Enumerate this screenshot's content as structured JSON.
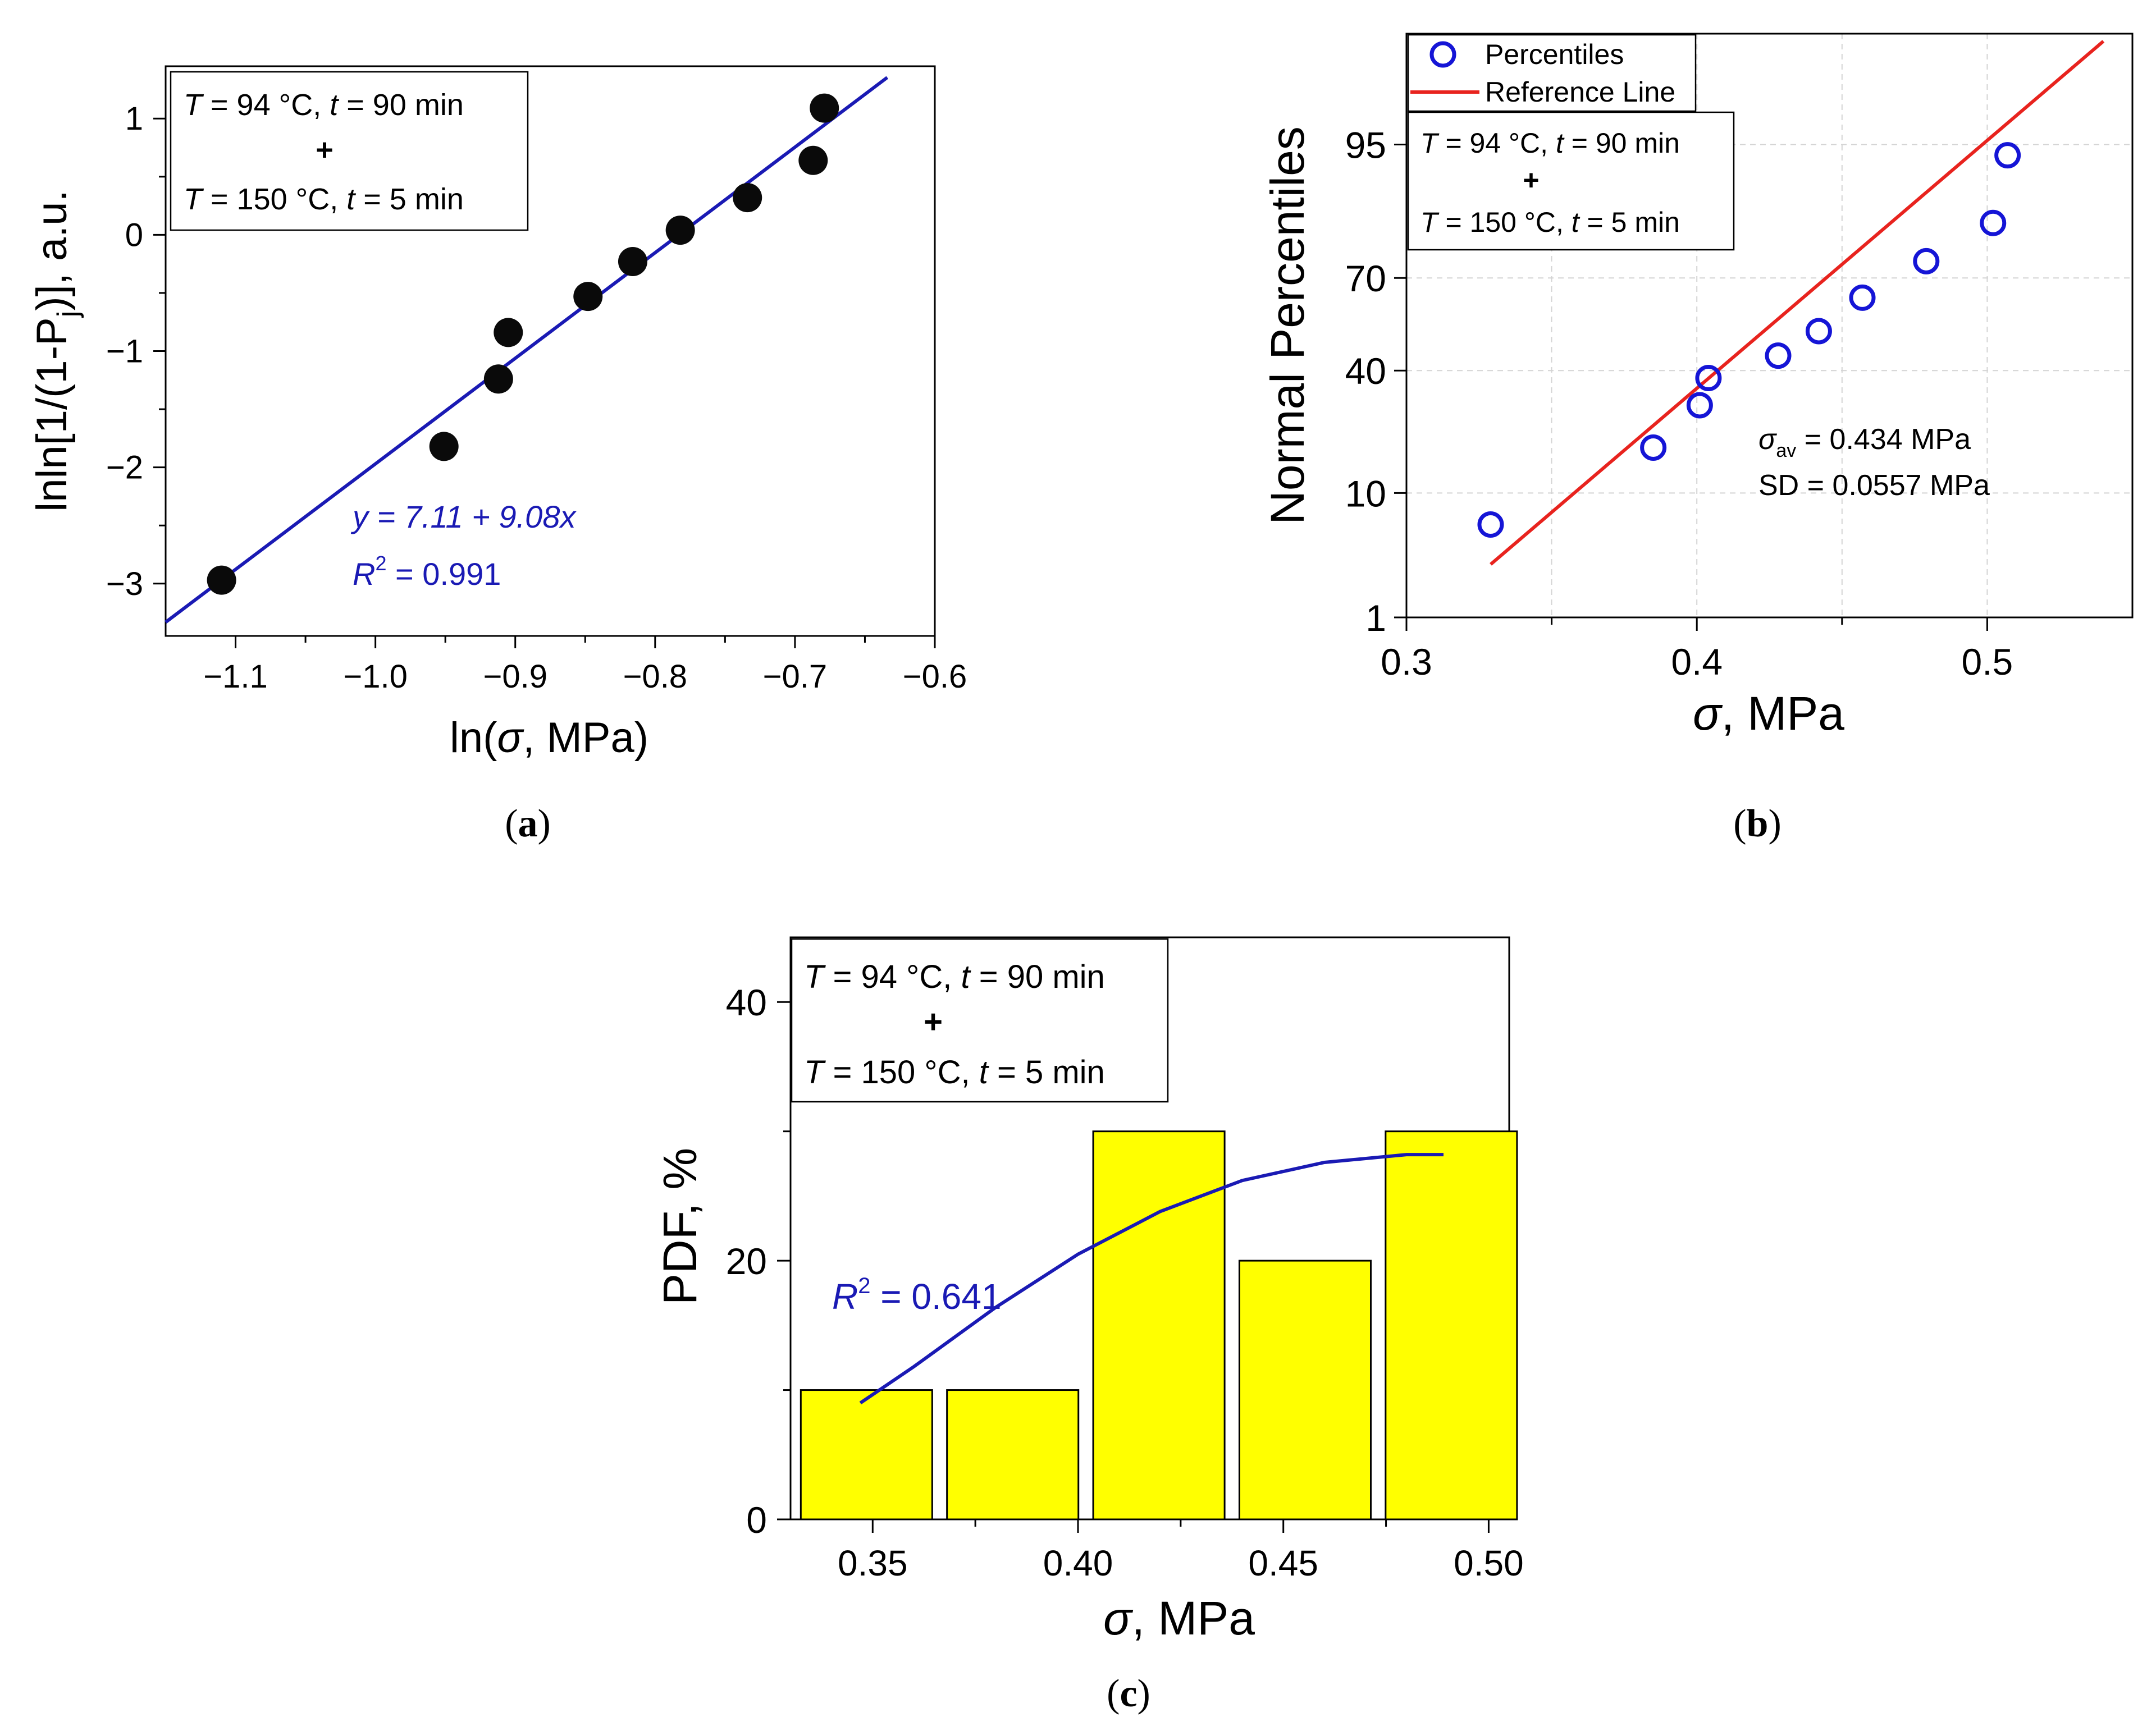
{
  "colors": {
    "axis": "#000000",
    "blue_fit": "#1a1ab4",
    "blue_text": "#1a1ab4",
    "red_line": "#e8231e",
    "marker_dark": "#0a0a0a",
    "marker_ring": "#1515d6",
    "bar_fill": "#ffff00",
    "bar_stroke": "#000000",
    "grid": "#d4d4d4"
  },
  "panel_labels": [
    "(a)",
    "(b)",
    "(c)"
  ],
  "condition_box": {
    "line1": {
      "T_sym": "T",
      "T_val": " = 94 °C, ",
      "t_sym": "t",
      "t_val": " = 90 min"
    },
    "plus": "+",
    "line2": {
      "T_sym": "T",
      "T_val": " = 150 °C, ",
      "t_sym": "t",
      "t_val": " = 5 min"
    }
  },
  "chart_data": [
    {
      "id": "a",
      "type": "scatter",
      "title": "",
      "xlabel": "ln(σ, MPa)",
      "ylabel": "lnln[1/(1-Pj)], a.u.",
      "xlim": [
        -1.15,
        -0.6
      ],
      "ylim": [
        -3.45,
        1.45
      ],
      "xticks": [
        -1.1,
        -1.0,
        -0.9,
        -0.8,
        -0.7,
        -0.6
      ],
      "xtick_labels": [
        "−1.1",
        "−1.0",
        "−0.9",
        "−0.8",
        "−0.7",
        "−0.6"
      ],
      "yticks": [
        -3,
        -2,
        -1,
        0,
        1
      ],
      "ytick_labels": [
        "−3",
        "−2",
        "−1",
        "0",
        "1"
      ],
      "series": [
        {
          "name": "data",
          "x": [
            -1.11,
            -0.951,
            -0.912,
            -0.905,
            -0.848,
            -0.816,
            -0.782,
            -0.734,
            -0.687,
            -0.679
          ],
          "y": [
            -2.97,
            -1.82,
            -1.24,
            -0.84,
            -0.53,
            -0.23,
            0.04,
            0.32,
            0.64,
            1.09
          ]
        }
      ],
      "fit": {
        "intercept": 7.11,
        "slope": 9.08,
        "x_range": [
          -1.15,
          -0.634
        ]
      },
      "annotations": {
        "equation": "y = 7.11 + 9.08x",
        "r2_label": "R",
        "r2_sup": "2",
        "r2_value": " = 0.991"
      }
    },
    {
      "id": "b",
      "type": "scatter",
      "title": "",
      "xlabel": "σ, MPa",
      "ylabel": "Normal Percentiles",
      "xlim": [
        0.3,
        0.55
      ],
      "xticks": [
        0.3,
        0.4,
        0.5
      ],
      "xtick_labels": [
        "0.3",
        "0.4",
        "0.5"
      ],
      "y_scale": "normal-probability",
      "yticks": [
        1,
        10,
        40,
        70,
        95
      ],
      "ytick_labels": [
        "1",
        "10",
        "40",
        "70",
        "95"
      ],
      "series": [
        {
          "name": "Percentiles",
          "x": [
            0.329,
            0.385,
            0.401,
            0.404,
            0.428,
            0.442,
            0.457,
            0.479,
            0.502,
            0.507
          ],
          "y": [
            6.1,
            18.4,
            29.3,
            37.6,
            44.9,
            53.1,
            64.0,
            74.7,
            83.8,
            94.0
          ]
        }
      ],
      "reference_line": {
        "name": "Reference Line",
        "x": [
          0.329,
          0.54
        ],
        "y": [
          3.0,
          99.4
        ]
      },
      "legend": [
        "Percentiles",
        "Reference Line"
      ],
      "annotations": {
        "sigma_sym": "σ",
        "sigma_sub": "av",
        "sigma_val": " = 0.434 MPa",
        "sd": "SD = 0.0557 MPa"
      }
    },
    {
      "id": "c",
      "type": "bar",
      "title": "",
      "xlabel": "σ, MPa",
      "ylabel": "PDF, %",
      "xlim": [
        0.33,
        0.505
      ],
      "ylim": [
        0,
        45
      ],
      "xticks": [
        0.35,
        0.4,
        0.45,
        0.5
      ],
      "xtick_labels": [
        "0.35",
        "0.40",
        "0.45",
        "0.50"
      ],
      "yticks": [
        0,
        20,
        40
      ],
      "ytick_labels": [
        "0",
        "20",
        "40"
      ],
      "bins": [
        [
          0.3325,
          0.3645
        ],
        [
          0.3681,
          0.4001
        ],
        [
          0.4037,
          0.4357
        ],
        [
          0.4393,
          0.4713
        ],
        [
          0.4749,
          0.5069
        ]
      ],
      "values": [
        10,
        10,
        30,
        20,
        30
      ],
      "fit_curve": {
        "x": [
          0.347,
          0.36,
          0.38,
          0.4,
          0.42,
          0.44,
          0.46,
          0.48,
          0.489
        ],
        "y": [
          9.0,
          11.8,
          16.4,
          20.5,
          23.8,
          26.2,
          27.6,
          28.2,
          28.2
        ]
      },
      "annotations": {
        "r2_label": "R",
        "r2_sup": "2",
        "r2_value": " = 0.641"
      }
    }
  ]
}
